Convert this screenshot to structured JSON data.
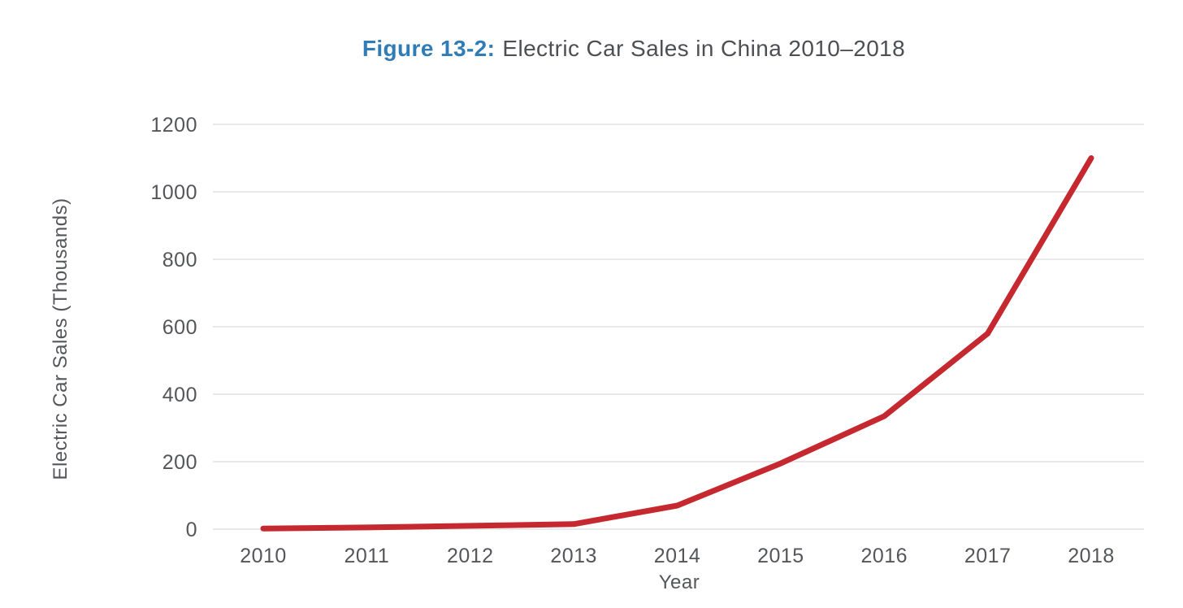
{
  "figure": {
    "title_prefix": "Figure 13-2:",
    "title_rest": "Electric Car Sales in China 2010–2018"
  },
  "chart_data": {
    "type": "line",
    "title": "Figure 13-2: Electric Car Sales in China 2010–2018",
    "xlabel": "Year",
    "ylabel": "Electric Car Sales (Thousands)",
    "categories": [
      "2010",
      "2011",
      "2012",
      "2013",
      "2014",
      "2015",
      "2016",
      "2017",
      "2018"
    ],
    "series": [
      {
        "name": "Electric Car Sales",
        "values": [
          2,
          5,
          10,
          15,
          70,
          195,
          335,
          580,
          1100
        ]
      }
    ],
    "ylim": [
      0,
      1200
    ],
    "ytick_step": 200,
    "yticks": [
      0,
      200,
      400,
      600,
      800,
      1000,
      1200
    ],
    "grid": true,
    "legend": "none",
    "colors": {
      "line": "#c5282f",
      "gridline": "#e9e9ea",
      "tick_text": "#54565a",
      "title_prefix": "#2f7cb7",
      "title_text": "#4d4f54",
      "background": "#ffffff"
    }
  }
}
